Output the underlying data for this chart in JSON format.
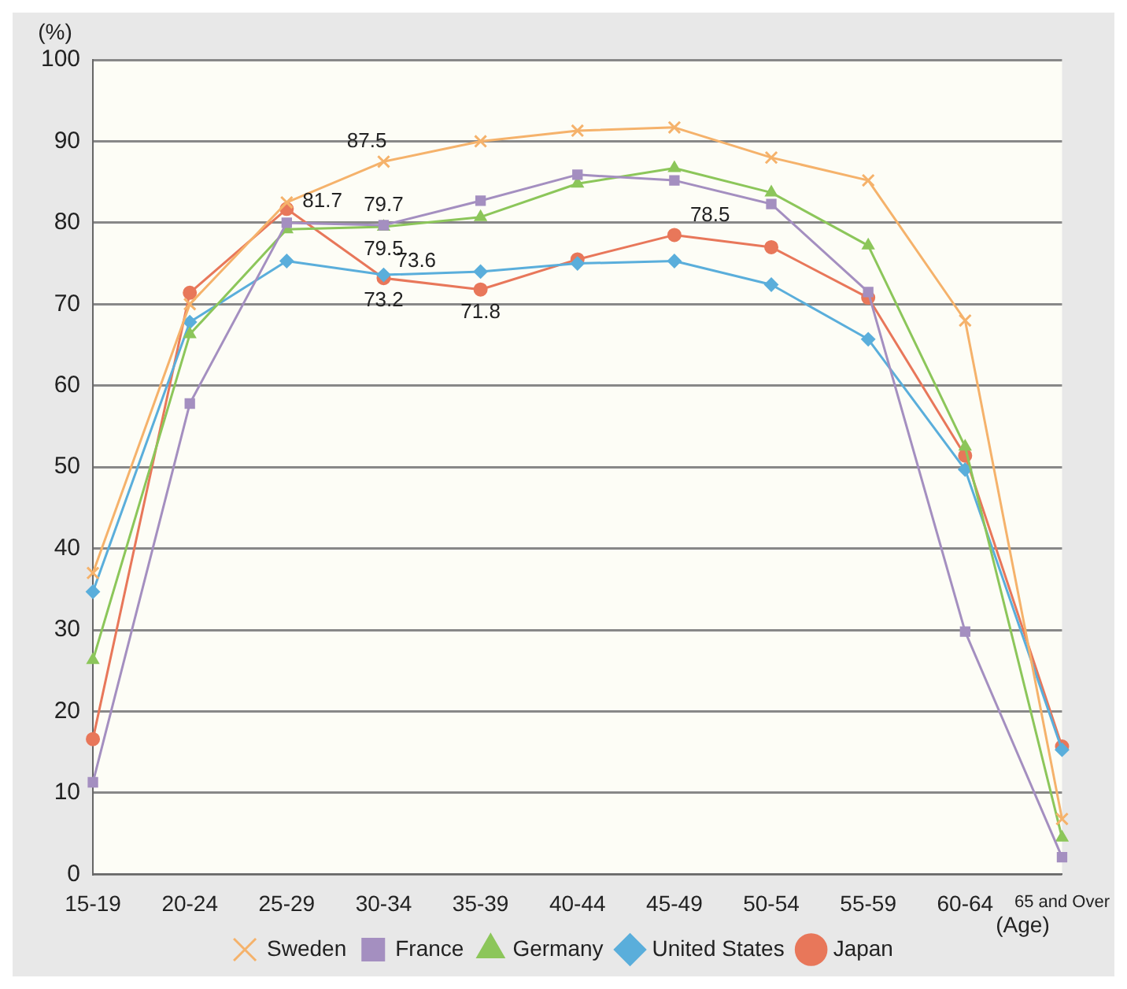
{
  "chart_data": {
    "type": "line",
    "ylabel": "(%)",
    "xlabel": "(Age)",
    "categories": [
      "15-19",
      "20-24",
      "25-29",
      "30-34",
      "35-39",
      "40-44",
      "45-49",
      "50-54",
      "55-59",
      "60-64",
      "65 and Over"
    ],
    "ylim": [
      0,
      100
    ],
    "yticks": [
      0,
      10,
      20,
      30,
      40,
      50,
      60,
      70,
      80,
      90,
      100
    ],
    "grid": "y",
    "legend": "bottom",
    "line_style": "solid",
    "series": [
      {
        "name": "Sweden",
        "color": "#f5b26b",
        "marker": "cross",
        "values": [
          37,
          70,
          82.5,
          87.5,
          90,
          91.3,
          91.7,
          88,
          85.2,
          68,
          6.8
        ],
        "value_labels": [
          null,
          null,
          null,
          "87.5",
          null,
          null,
          null,
          null,
          null,
          null,
          null
        ]
      },
      {
        "name": "France",
        "color": "#a48fc0",
        "marker": "square",
        "values": [
          11.3,
          57.8,
          80,
          79.7,
          82.7,
          85.9,
          85.2,
          82.3,
          71.5,
          29.8,
          2.1
        ],
        "value_labels": [
          null,
          null,
          null,
          "79.7",
          null,
          null,
          null,
          null,
          null,
          null,
          null
        ]
      },
      {
        "name": "Germany",
        "color": "#8cc65a",
        "marker": "triangle",
        "values": [
          26.3,
          66.3,
          79.2,
          79.5,
          80.7,
          84.8,
          86.7,
          83.7,
          77.2,
          52.5,
          4.5
        ],
        "value_labels": [
          null,
          null,
          null,
          "79.5",
          null,
          null,
          null,
          null,
          null,
          null,
          null
        ]
      },
      {
        "name": "United States",
        "color": "#5aaedb",
        "marker": "diamond",
        "values": [
          34.7,
          67.8,
          75.3,
          73.6,
          74,
          75,
          75.3,
          72.4,
          65.7,
          49.7,
          15.3
        ],
        "value_labels": [
          null,
          null,
          null,
          "73.6",
          null,
          null,
          null,
          null,
          null,
          null,
          null
        ]
      },
      {
        "name": "Japan",
        "color": "#e8775a",
        "marker": "circle",
        "values": [
          16.6,
          71.4,
          81.7,
          73.2,
          71.8,
          75.5,
          78.5,
          77,
          70.8,
          51.4,
          15.7
        ],
        "value_labels": [
          null,
          null,
          "81.7",
          "73.2",
          "71.8",
          null,
          "78.5",
          null,
          null,
          null,
          null
        ]
      }
    ]
  }
}
